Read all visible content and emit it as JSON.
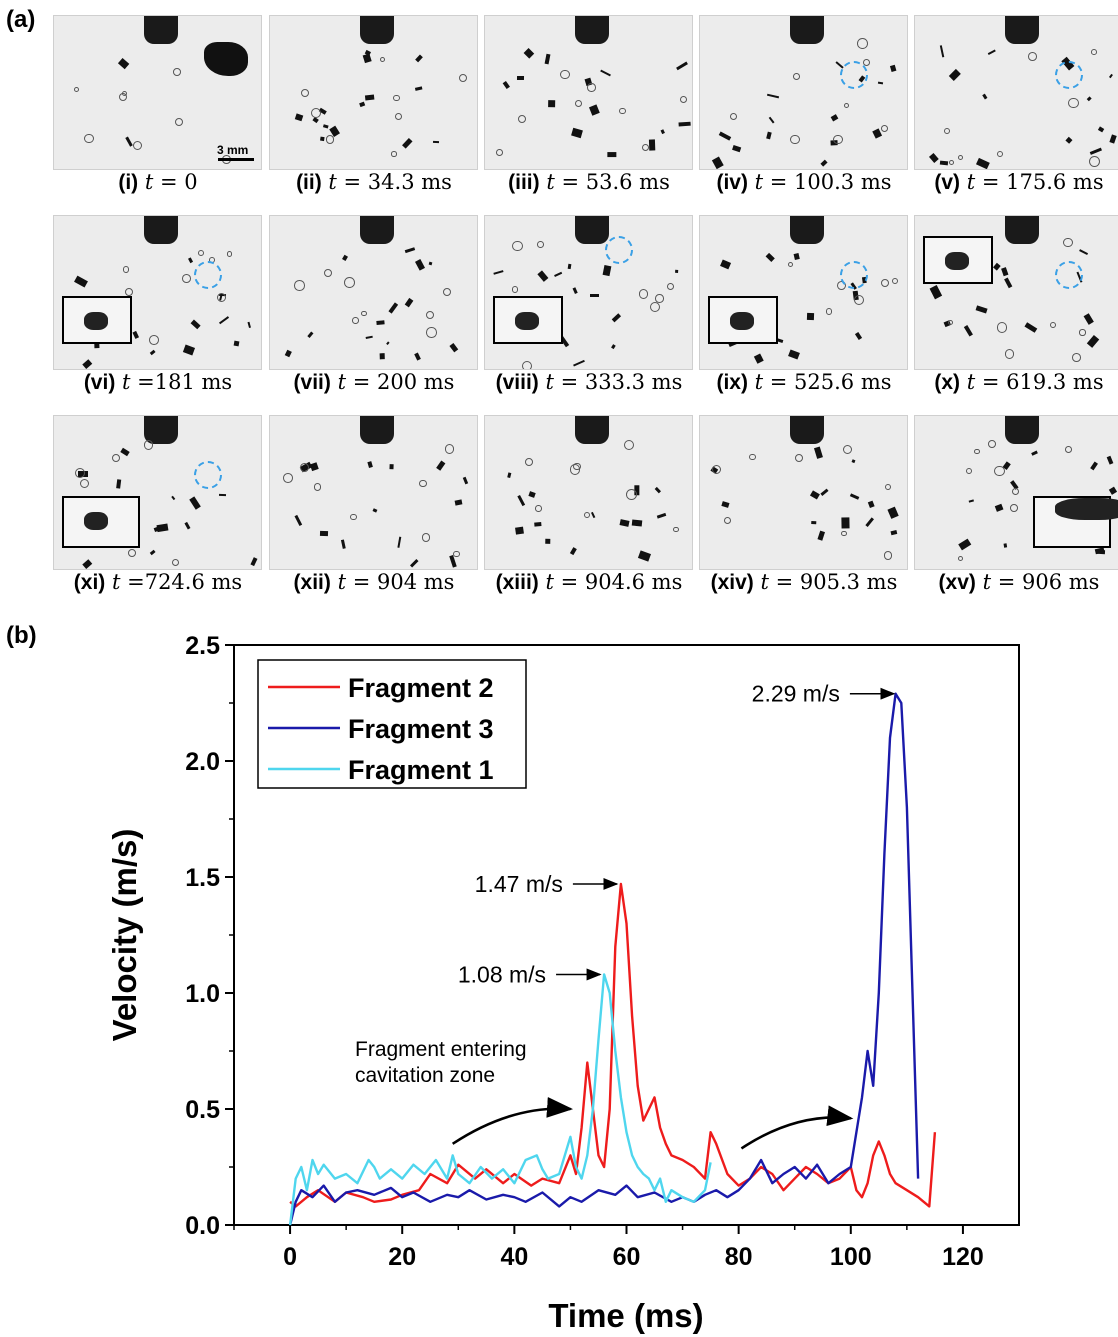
{
  "panel_a": {
    "label": "(a)",
    "scale_label": "3 mm",
    "frames": [
      {
        "num": "(i)",
        "tvar": "t",
        "rest": " = 0"
      },
      {
        "num": "(ii)",
        "tvar": "t",
        "rest": " = 34.3 ms"
      },
      {
        "num": "(iii)",
        "tvar": "t",
        "rest": " = 53.6 ms"
      },
      {
        "num": "(iv)",
        "tvar": "t",
        "rest": " = 100.3 ms"
      },
      {
        "num": "(v)",
        "tvar": "t",
        "rest": " = 175.6 ms"
      },
      {
        "num": "(vi)",
        "tvar": "t",
        "rest": " =181 ms"
      },
      {
        "num": "(vii)",
        "tvar": "t",
        "rest": " = 200 ms"
      },
      {
        "num": "(viii)",
        "tvar": "t",
        "rest": " = 333.3 ms"
      },
      {
        "num": "(ix)",
        "tvar": "t",
        "rest": " = 525.6 ms"
      },
      {
        "num": "(x)",
        "tvar": "t",
        "rest": " = 619.3 ms"
      },
      {
        "num": "(xi)",
        "tvar": "t",
        "rest": " =724.6 ms"
      },
      {
        "num": "(xii)",
        "tvar": "t",
        "rest": " = 904 ms"
      },
      {
        "num": "(xiii)",
        "tvar": "t",
        "rest": " = 904.6 ms"
      },
      {
        "num": "(xiv)",
        "tvar": "t",
        "rest": " = 905.3 ms"
      },
      {
        "num": "(xv)",
        "tvar": "t",
        "rest": " = 906 ms"
      }
    ]
  },
  "panel_b": {
    "label": "(b)"
  },
  "chart_data": {
    "type": "line",
    "xlabel": "Time (ms)",
    "ylabel": "Velocity (m/s)",
    "xlim": [
      -10,
      130
    ],
    "ylim": [
      0,
      2.5
    ],
    "xticks": [
      0,
      20,
      40,
      60,
      80,
      100,
      120
    ],
    "yticks": [
      0.0,
      0.5,
      1.0,
      1.5,
      2.0,
      2.5
    ],
    "ytick_labels": [
      "0.0",
      "0.5",
      "1.0",
      "1.5",
      "2.0",
      "2.5"
    ],
    "legend_position": "top-left",
    "series": [
      {
        "name": "Fragment 2",
        "color": "#ee1c1c",
        "x": [
          0,
          1,
          3,
          5,
          8,
          10,
          13,
          15,
          18,
          20,
          23,
          25,
          28,
          30,
          33,
          35,
          38,
          40,
          43,
          45,
          48,
          50,
          51,
          52,
          53,
          54,
          55,
          56,
          57,
          58,
          59,
          60,
          61,
          62,
          63,
          64,
          65,
          66,
          67,
          68,
          70,
          72,
          74,
          75,
          76,
          78,
          80,
          82,
          84,
          86,
          88,
          90,
          92,
          94,
          96,
          98,
          100,
          101,
          102,
          103,
          104,
          105,
          106,
          107,
          108,
          110,
          112,
          113,
          114,
          115
        ],
        "y": [
          0.1,
          0.08,
          0.12,
          0.15,
          0.1,
          0.14,
          0.12,
          0.1,
          0.11,
          0.13,
          0.15,
          0.22,
          0.18,
          0.26,
          0.2,
          0.24,
          0.18,
          0.22,
          0.17,
          0.2,
          0.18,
          0.3,
          0.22,
          0.42,
          0.7,
          0.5,
          0.3,
          0.25,
          0.5,
          1.2,
          1.47,
          1.3,
          0.9,
          0.6,
          0.45,
          0.5,
          0.55,
          0.42,
          0.35,
          0.3,
          0.28,
          0.25,
          0.2,
          0.4,
          0.35,
          0.22,
          0.17,
          0.2,
          0.25,
          0.22,
          0.15,
          0.2,
          0.25,
          0.22,
          0.18,
          0.2,
          0.25,
          0.15,
          0.12,
          0.18,
          0.3,
          0.36,
          0.3,
          0.22,
          0.18,
          0.15,
          0.12,
          0.1,
          0.08,
          0.4
        ]
      },
      {
        "name": "Fragment 3",
        "color": "#1a1aaa",
        "x": [
          0,
          1,
          2,
          4,
          6,
          8,
          10,
          12,
          15,
          18,
          20,
          22,
          25,
          28,
          30,
          32,
          35,
          38,
          40,
          42,
          45,
          48,
          50,
          52,
          55,
          58,
          60,
          62,
          65,
          68,
          70,
          72,
          74,
          76,
          78,
          80,
          82,
          84,
          86,
          88,
          90,
          92,
          94,
          96,
          98,
          100,
          101,
          102,
          103,
          104,
          105,
          106,
          107,
          108,
          109,
          110,
          111,
          112
        ],
        "y": [
          0.0,
          0.1,
          0.15,
          0.12,
          0.17,
          0.1,
          0.14,
          0.15,
          0.13,
          0.16,
          0.12,
          0.14,
          0.1,
          0.13,
          0.12,
          0.15,
          0.11,
          0.13,
          0.12,
          0.1,
          0.14,
          0.08,
          0.12,
          0.1,
          0.15,
          0.13,
          0.17,
          0.12,
          0.14,
          0.1,
          0.12,
          0.1,
          0.13,
          0.15,
          0.12,
          0.15,
          0.2,
          0.28,
          0.18,
          0.22,
          0.25,
          0.2,
          0.26,
          0.18,
          0.22,
          0.25,
          0.4,
          0.55,
          0.75,
          0.6,
          1.0,
          1.6,
          2.1,
          2.29,
          2.25,
          1.8,
          1.0,
          0.2
        ]
      },
      {
        "name": "Fragment 1",
        "color": "#4fd6ee",
        "x": [
          0,
          1,
          2,
          3,
          4,
          5,
          6,
          8,
          10,
          12,
          14,
          15,
          16,
          18,
          20,
          22,
          24,
          26,
          28,
          29,
          30,
          32,
          34,
          36,
          38,
          40,
          42,
          44,
          45,
          46,
          48,
          50,
          51,
          52,
          53,
          54,
          55,
          56,
          57,
          58,
          59,
          60,
          61,
          62,
          63,
          64,
          65,
          66,
          67,
          68,
          70,
          72,
          74,
          75
        ],
        "y": [
          0.0,
          0.2,
          0.25,
          0.15,
          0.28,
          0.22,
          0.26,
          0.2,
          0.22,
          0.18,
          0.28,
          0.25,
          0.2,
          0.24,
          0.2,
          0.26,
          0.22,
          0.28,
          0.2,
          0.3,
          0.22,
          0.18,
          0.25,
          0.2,
          0.24,
          0.18,
          0.28,
          0.3,
          0.24,
          0.2,
          0.22,
          0.38,
          0.25,
          0.2,
          0.3,
          0.5,
          0.8,
          1.08,
          1.0,
          0.75,
          0.55,
          0.4,
          0.3,
          0.25,
          0.22,
          0.2,
          0.15,
          0.2,
          0.1,
          0.15,
          0.12,
          0.1,
          0.15,
          0.27
        ]
      }
    ],
    "annotations": [
      {
        "text": "2.29 m/s",
        "x": 108.4,
        "y": 2.29
      },
      {
        "text": "1.47 m/s",
        "x": 59,
        "y": 1.47
      },
      {
        "text": "1.08 m/s",
        "x": 56,
        "y": 1.08
      }
    ],
    "note": {
      "line1": "Fragment entering",
      "line2": "cavitation zone"
    }
  }
}
